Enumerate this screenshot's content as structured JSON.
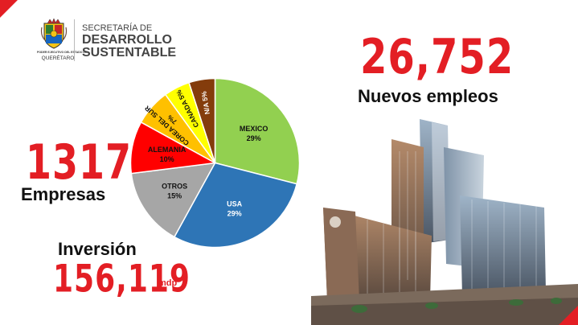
{
  "header": {
    "government_label": "PODER EJECUTIVO DEL ESTADO DE",
    "government_city": "QUERÉTARO",
    "secretaria_line1": "SECRETARÍA DE",
    "secretaria_line2": "DESARROLLO",
    "secretaria_line3": "SUSTENTABLE"
  },
  "stats": {
    "employees_value": "26,752",
    "employees_label": "Nuevos empleos",
    "companies_value": "1317",
    "companies_label": "Empresas",
    "investment_label": "Inversión",
    "investment_value": "156,119",
    "investment_unit": "mdp"
  },
  "chart_data": {
    "type": "pie",
    "title": "",
    "slices": [
      {
        "label": "MEXICO",
        "value": 29,
        "display": "29%",
        "color": "#92d050"
      },
      {
        "label": "USA",
        "value": 29,
        "display": "29%",
        "color": "#2e75b6"
      },
      {
        "label": "OTROS",
        "value": 15,
        "display": "15%",
        "color": "#a6a6a6"
      },
      {
        "label": "ALEMANIA",
        "value": 10,
        "display": "10%",
        "color": "#ff0000"
      },
      {
        "label": "COREA DEL SUR",
        "value": 7,
        "display": "7%",
        "color": "#ffc000"
      },
      {
        "label": "CANADA",
        "value": 5,
        "display": "5%",
        "color": "#ffff00"
      },
      {
        "label": "N/A",
        "value": 5,
        "display": "5%",
        "color": "#843c0c"
      }
    ]
  },
  "colors": {
    "accent_red": "#e31e24",
    "text_dark": "#111111",
    "text_gray": "#444444"
  },
  "icons": {
    "crest": "state-coat-of-arms-icon",
    "building": "office-tower-image"
  }
}
